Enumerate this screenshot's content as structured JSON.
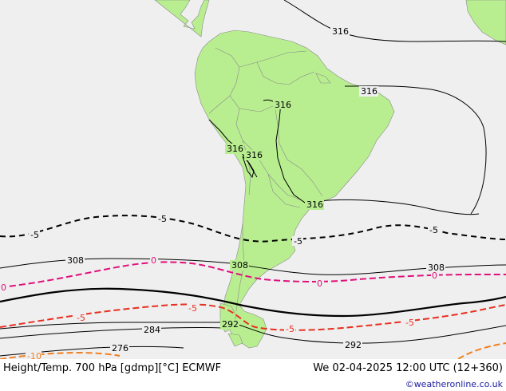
{
  "map": {
    "colors": {
      "ocean": "#efefef",
      "land": "#b8ee90",
      "border": "#8a8a8a",
      "height_contour": "#000000",
      "temp_minus5": "#000000",
      "temp_0": "#e0107a",
      "temp_plus5": "#e83020",
      "temp_warm": "#f08020"
    },
    "height_labels": {
      "h316_a": "316",
      "h316_b": "316",
      "h316_c": "316",
      "h316_d": "316",
      "h316_e": "316",
      "h316_f": "316",
      "h308_a": "308",
      "h308_b": "308",
      "h308_c": "308",
      "h292_a": "292",
      "h292_b": "292",
      "h284": "284",
      "h276": "276"
    },
    "temp_labels": {
      "tm5_a": "-5",
      "tm5_b": "-5",
      "tm5_c": "-5",
      "tm5_d": "-5",
      "t0_a": "0",
      "t0_b": "0",
      "t0_c": "0",
      "t0_d": "0",
      "t5_a": "-5",
      "t5_b": "-5",
      "t5_c": "-5",
      "t5_d": "-5",
      "t10": "-10"
    }
  },
  "footer": {
    "title": "Height/Temp. 700 hPa [gdmp][°C] ECMWF",
    "datetime": "We 02-04-2025 12:00 UTC (12+360)",
    "credit": "©weatheronline.co.uk"
  }
}
